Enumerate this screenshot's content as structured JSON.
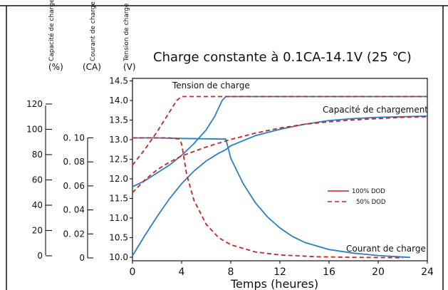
{
  "chart_data": {
    "type": "line",
    "title": "Charge constante à 0.1CA-14.1V (25 ℃)",
    "xlabel": "Temps (heures)",
    "x_ticks": [
      0,
      4,
      8,
      12,
      16,
      20,
      24
    ],
    "xlim": [
      0,
      24
    ],
    "axes": {
      "capacity": {
        "label": "Capacité de chargement",
        "unit": "(%)",
        "ticks": [
          0,
          20,
          40,
          60,
          80,
          100,
          120
        ],
        "range": [
          0,
          120
        ]
      },
      "current": {
        "label": "Courant de charge",
        "unit": "(CA)",
        "ticks": [
          "0",
          "0. 02",
          "0. 04",
          "0. 06",
          "0. 08",
          "0. 10"
        ],
        "range": [
          0,
          0.1
        ]
      },
      "voltage": {
        "label": "Tension de charge",
        "unit": "(V)",
        "ticks": [
          "10.0",
          "10.5",
          "11.0",
          "11.5",
          "12.0",
          "12.5",
          "13.0",
          "13.5",
          "14.0",
          "14.5"
        ],
        "range": [
          10.0,
          14.5
        ]
      }
    },
    "legend": {
      "position": "right",
      "items": [
        {
          "label": "100% DOD",
          "style": "solid",
          "color": "#cc2222"
        },
        {
          "label": "50% DOD",
          "style": "dashed",
          "color": "#cc2222"
        }
      ]
    },
    "annotations": {
      "voltage": "Tension de charge",
      "capacity": "Capacité de chargement",
      "current": "Courant de charge"
    },
    "series": [
      {
        "name": "Tension de charge",
        "dod": "100% DOD",
        "axis": "voltage",
        "color": "#2a7fc4",
        "style": "solid",
        "points": [
          [
            0,
            11.8
          ],
          [
            1,
            11.95
          ],
          [
            2,
            12.15
          ],
          [
            3,
            12.35
          ],
          [
            4,
            12.6
          ],
          [
            5,
            12.9
          ],
          [
            6,
            13.25
          ],
          [
            6.7,
            13.6
          ],
          [
            7.3,
            14.0
          ],
          [
            7.6,
            14.1
          ],
          [
            24,
            14.1
          ]
        ]
      },
      {
        "name": "Capacité de chargement",
        "dod": "100% DOD",
        "axis": "capacity",
        "color": "#2a7fc4",
        "style": "solid",
        "points": [
          [
            0,
            0
          ],
          [
            1,
            16
          ],
          [
            2,
            31
          ],
          [
            3,
            45
          ],
          [
            4,
            57
          ],
          [
            5,
            67
          ],
          [
            6,
            75
          ],
          [
            7,
            81
          ],
          [
            7.6,
            84
          ],
          [
            8,
            87
          ],
          [
            10,
            95
          ],
          [
            12,
            100
          ],
          [
            14,
            104
          ],
          [
            16,
            107
          ],
          [
            18,
            108.5
          ],
          [
            20,
            109.5
          ],
          [
            22,
            110
          ],
          [
            24,
            110.5
          ]
        ]
      },
      {
        "name": "Courant de charge",
        "dod": "100% DOD",
        "axis": "current",
        "color": "#2a7fc4",
        "style": "solid",
        "points": [
          [
            0,
            0.1
          ],
          [
            2,
            0.1
          ],
          [
            4,
            0.0995
          ],
          [
            6,
            0.0992
          ],
          [
            7.6,
            0.099
          ],
          [
            8,
            0.083
          ],
          [
            9,
            0.062
          ],
          [
            10,
            0.046
          ],
          [
            11,
            0.034
          ],
          [
            12,
            0.025
          ],
          [
            13,
            0.018
          ],
          [
            14,
            0.013
          ],
          [
            16,
            0.007
          ],
          [
            18,
            0.004
          ],
          [
            20,
            0.002
          ],
          [
            22,
            0.0008
          ],
          [
            22.6,
            0.0005
          ]
        ]
      },
      {
        "name": "Tension de charge",
        "dod": "50% DOD",
        "axis": "voltage",
        "color": "#cc2222",
        "style": "dashed",
        "points": [
          [
            0,
            12.35
          ],
          [
            1,
            12.75
          ],
          [
            2,
            13.2
          ],
          [
            3,
            13.7
          ],
          [
            3.6,
            14.0
          ],
          [
            4,
            14.1
          ],
          [
            24,
            14.1
          ]
        ]
      },
      {
        "name": "Capacité de chargement",
        "dod": "50% DOD",
        "axis": "capacity",
        "color": "#cc2222",
        "style": "dashed",
        "points": [
          [
            0,
            50
          ],
          [
            1,
            60
          ],
          [
            2,
            68
          ],
          [
            3,
            74
          ],
          [
            4,
            79
          ],
          [
            6,
            86
          ],
          [
            8,
            92
          ],
          [
            10,
            97
          ],
          [
            12,
            101
          ],
          [
            14,
            104
          ],
          [
            16,
            106
          ],
          [
            18,
            107.5
          ],
          [
            20,
            108.5
          ],
          [
            22,
            109.5
          ],
          [
            24,
            110
          ]
        ]
      },
      {
        "name": "Courant de charge",
        "dod": "50% DOD",
        "axis": "current",
        "color": "#cc2222",
        "style": "dashed",
        "points": [
          [
            0,
            0.1
          ],
          [
            3,
            0.1
          ],
          [
            3.8,
            0.099
          ],
          [
            4,
            0.095
          ],
          [
            4.4,
            0.07
          ],
          [
            5,
            0.048
          ],
          [
            6,
            0.028
          ],
          [
            7,
            0.017
          ],
          [
            8,
            0.011
          ],
          [
            10,
            0.005
          ],
          [
            12,
            0.0025
          ],
          [
            15,
            0.001
          ],
          [
            18,
            0.0005
          ],
          [
            22,
            0.0002
          ]
        ]
      }
    ]
  }
}
